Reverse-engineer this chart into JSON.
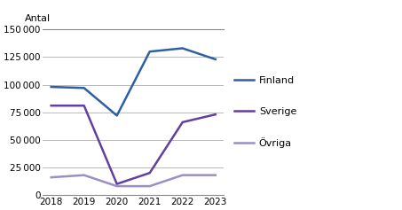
{
  "years": [
    2018,
    2019,
    2020,
    2021,
    2022,
    2023
  ],
  "finland": [
    98000,
    97000,
    72000,
    130000,
    133000,
    123000
  ],
  "sverige": [
    81000,
    81000,
    10000,
    20000,
    66000,
    73000
  ],
  "ovriga": [
    16000,
    18000,
    8000,
    8000,
    18000,
    18000
  ],
  "finland_color": "#2e5fa3",
  "sverige_color": "#6040a0",
  "ovriga_color": "#9b8ec4",
  "ylabel": "Antal",
  "ylim": [
    0,
    150000
  ],
  "yticks": [
    0,
    25000,
    50000,
    75000,
    100000,
    125000,
    150000
  ],
  "legend_labels": [
    "Finland",
    "Sverige",
    "Övriga"
  ],
  "background_color": "#ffffff",
  "grid_color": "#b0b0b0"
}
